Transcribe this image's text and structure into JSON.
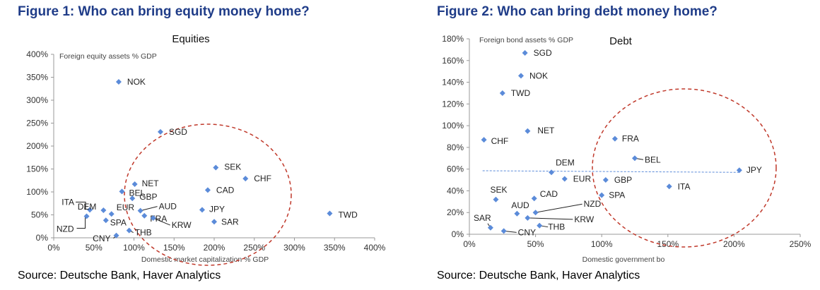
{
  "figures": [
    {
      "title": "Figure 1: Who can bring equity money home?",
      "source": "Source: Deutsche Bank, Haver Analytics"
    },
    {
      "title": "Figure 2: Who can bring debt money home?",
      "source": "Source: Deutsche Bank, Haver Analytics"
    }
  ],
  "chart_data": [
    {
      "type": "scatter",
      "title": "Equities",
      "ylabel": "Foreign equity assets % GDP",
      "xlabel": "Domestic market capitalization % GDP",
      "xlim": [
        0,
        400
      ],
      "ylim": [
        0,
        400
      ],
      "xticks": [
        0,
        50,
        100,
        150,
        200,
        250,
        300,
        350,
        400
      ],
      "yticks": [
        0,
        50,
        100,
        150,
        200,
        250,
        300,
        350,
        400
      ],
      "tick_suffix": "%",
      "grid": false,
      "marker_color": "#5b8bd9",
      "highlight_color": "#c0392b",
      "points": [
        {
          "label": "NOK",
          "x": 81,
          "y": 340
        },
        {
          "label": "SGD",
          "x": 133,
          "y": 231
        },
        {
          "label": "SEK",
          "x": 202,
          "y": 153
        },
        {
          "label": "CHF",
          "x": 239,
          "y": 129
        },
        {
          "label": "CAD",
          "x": 192,
          "y": 104
        },
        {
          "label": "NET",
          "x": 101,
          "y": 117
        },
        {
          "label": "BEL",
          "x": 85,
          "y": 101
        },
        {
          "label": "GBP",
          "x": 98,
          "y": 86
        },
        {
          "label": "ITA",
          "x": 45,
          "y": 61
        },
        {
          "label": "DEM",
          "x": 62,
          "y": 60
        },
        {
          "label": "EUR",
          "x": 72,
          "y": 52
        },
        {
          "label": "SPA",
          "x": 65,
          "y": 38
        },
        {
          "label": "NZD",
          "x": 41,
          "y": 47
        },
        {
          "label": "FRA",
          "x": 113,
          "y": 48
        },
        {
          "label": "AUD",
          "x": 108,
          "y": 59
        },
        {
          "label": "KRW",
          "x": 124,
          "y": 43
        },
        {
          "label": "THB",
          "x": 94,
          "y": 16
        },
        {
          "label": "CNY",
          "x": 78,
          "y": 5
        },
        {
          "label": "JPY",
          "x": 185,
          "y": 61
        },
        {
          "label": "SAR",
          "x": 200,
          "y": 35
        },
        {
          "label": "TWD",
          "x": 344,
          "y": 53
        }
      ]
    },
    {
      "type": "scatter",
      "title": "Debt",
      "ylabel": "Foreign bond assets % GDP",
      "xlabel": "Domestic government bo",
      "xlim": [
        0,
        250
      ],
      "ylim": [
        0,
        180
      ],
      "xticks": [
        0,
        50,
        100,
        150,
        200,
        250
      ],
      "yticks": [
        0,
        20,
        40,
        60,
        80,
        100,
        120,
        140,
        160,
        180
      ],
      "tick_suffix": "%",
      "grid": false,
      "marker_color": "#5b8bd9",
      "highlight_color": "#c0392b",
      "points": [
        {
          "label": "SGD",
          "x": 42,
          "y": 167
        },
        {
          "label": "NOK",
          "x": 39,
          "y": 146
        },
        {
          "label": "TWD",
          "x": 25,
          "y": 130
        },
        {
          "label": "NET",
          "x": 44,
          "y": 95
        },
        {
          "label": "CHF",
          "x": 11,
          "y": 87
        },
        {
          "label": "FRA",
          "x": 110,
          "y": 88
        },
        {
          "label": "BEL",
          "x": 125,
          "y": 70
        },
        {
          "label": "DEM",
          "x": 62,
          "y": 57
        },
        {
          "label": "EUR",
          "x": 72,
          "y": 51
        },
        {
          "label": "GBP",
          "x": 103,
          "y": 50
        },
        {
          "label": "JPY",
          "x": 204,
          "y": 59
        },
        {
          "label": "ITA",
          "x": 151,
          "y": 44
        },
        {
          "label": "SPA",
          "x": 100,
          "y": 36
        },
        {
          "label": "SEK",
          "x": 20,
          "y": 32
        },
        {
          "label": "CAD",
          "x": 49,
          "y": 33
        },
        {
          "label": "AUD",
          "x": 36,
          "y": 19
        },
        {
          "label": "NZD",
          "x": 50,
          "y": 20
        },
        {
          "label": "KRW",
          "x": 44,
          "y": 15
        },
        {
          "label": "THB",
          "x": 53,
          "y": 8
        },
        {
          "label": "SAR",
          "x": 16,
          "y": 6
        },
        {
          "label": "CNY",
          "x": 26,
          "y": 3
        }
      ],
      "trendline": {
        "x": [
          10,
          205
        ],
        "y": [
          58.5,
          57
        ]
      }
    }
  ]
}
